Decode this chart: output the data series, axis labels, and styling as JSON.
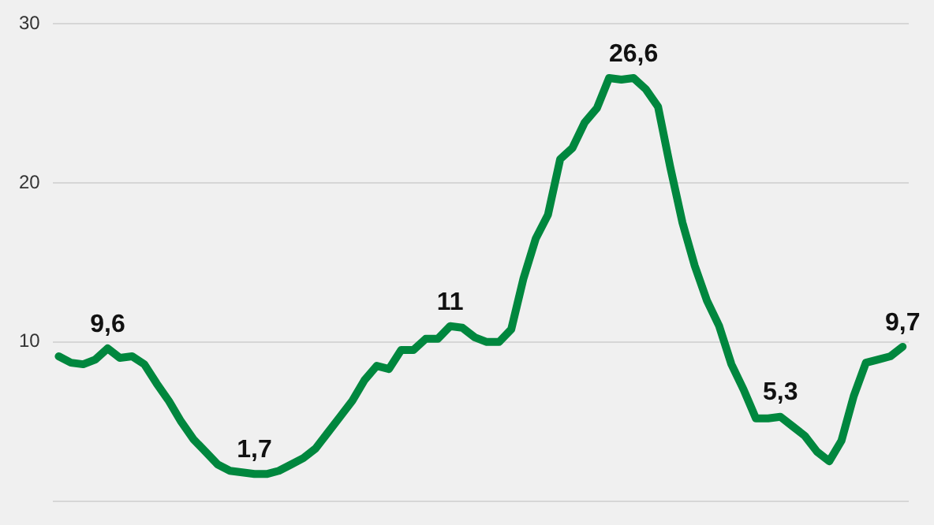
{
  "chart_data": {
    "type": "line",
    "categories": [
      null,
      null,
      null,
      null,
      null,
      null,
      null,
      null,
      null,
      null,
      null,
      null,
      null,
      null,
      null,
      null,
      null,
      null,
      null,
      null,
      null,
      null,
      null,
      null,
      null,
      null,
      null,
      null,
      null,
      null,
      null,
      null,
      null,
      null,
      null,
      null,
      null,
      null,
      null,
      null,
      null,
      null,
      null,
      null,
      null,
      null,
      null,
      null,
      null,
      null,
      null,
      null,
      null,
      null,
      null,
      null,
      null,
      null,
      null,
      null,
      null,
      null,
      null,
      null,
      null,
      null,
      null,
      null,
      null,
      null
    ],
    "series": [
      {
        "color": "#00873e",
        "values": [
          9.1,
          8.7,
          8.6,
          8.9,
          9.6,
          9.0,
          9.1,
          8.6,
          7.4,
          6.3,
          5.0,
          3.9,
          3.1,
          2.3,
          1.9,
          1.8,
          1.7,
          1.7,
          1.9,
          2.3,
          2.7,
          3.3,
          4.3,
          5.3,
          6.3,
          7.6,
          8.5,
          8.3,
          9.5,
          9.5,
          10.2,
          10.2,
          11,
          10.9,
          10.3,
          10.0,
          10.0,
          10.8,
          14.0,
          16.5,
          18.0,
          21.5,
          22.2,
          23.8,
          24.7,
          26.6,
          26.5,
          26.6,
          25.9,
          24.8,
          21.0,
          17.5,
          14.8,
          12.6,
          11.0,
          8.6,
          7.0,
          5.2,
          5.2,
          5.3,
          4.7,
          4.1,
          3.1,
          2.5,
          3.8,
          6.6,
          8.7,
          8.9,
          9.1,
          9.7
        ],
        "value_labels": [
          null,
          null,
          null,
          null,
          "9,6",
          null,
          null,
          null,
          null,
          null,
          null,
          null,
          null,
          null,
          null,
          null,
          "1,7",
          null,
          null,
          null,
          null,
          null,
          null,
          null,
          null,
          null,
          null,
          null,
          null,
          null,
          null,
          null,
          "11",
          null,
          null,
          null,
          null,
          null,
          null,
          null,
          null,
          null,
          null,
          null,
          null,
          null,
          null,
          "26,6",
          null,
          null,
          null,
          null,
          null,
          null,
          null,
          null,
          null,
          null,
          null,
          "5,3",
          null,
          null,
          null,
          null,
          null,
          null,
          null,
          null,
          null,
          "9,7"
        ]
      }
    ],
    "ylim": [
      0,
      30
    ],
    "yticks": [
      {
        "value": 0,
        "label": null
      },
      10,
      20,
      30
    ],
    "grid": "y",
    "marker": "none",
    "line_style": "solid"
  }
}
